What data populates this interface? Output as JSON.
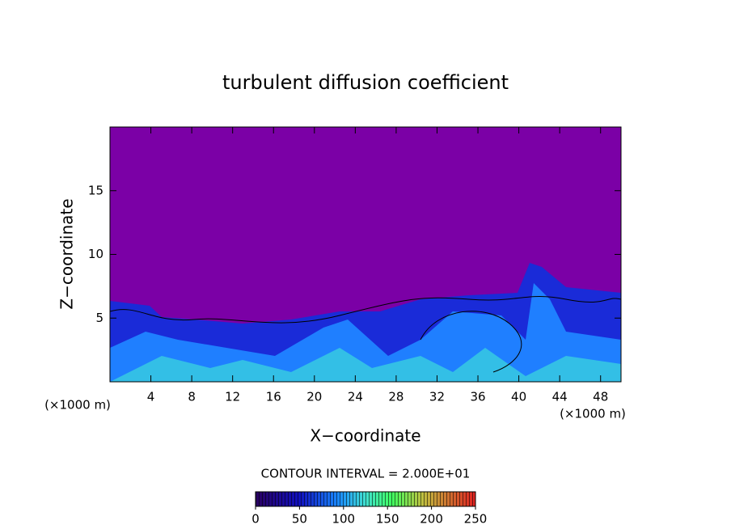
{
  "chart_data": {
    "type": "contour",
    "title": "turbulent diffusion coefficient",
    "x_label": "X−coordinate",
    "y_label": "Z−coordinate",
    "x_unit_label": "(×1000 m)",
    "xlim": [
      0,
      50
    ],
    "xticks": [
      4,
      8,
      12,
      16,
      20,
      24,
      28,
      32,
      36,
      40,
      44,
      48
    ],
    "ylim": [
      0,
      20
    ],
    "yticks": [
      5,
      10,
      15
    ],
    "contour_interval_label": "CONTOUR INTERVAL = 2.000E+01",
    "colorbar": {
      "lim": [
        0,
        250
      ],
      "ticks": [
        0,
        50,
        100,
        150,
        200,
        250
      ]
    }
  }
}
